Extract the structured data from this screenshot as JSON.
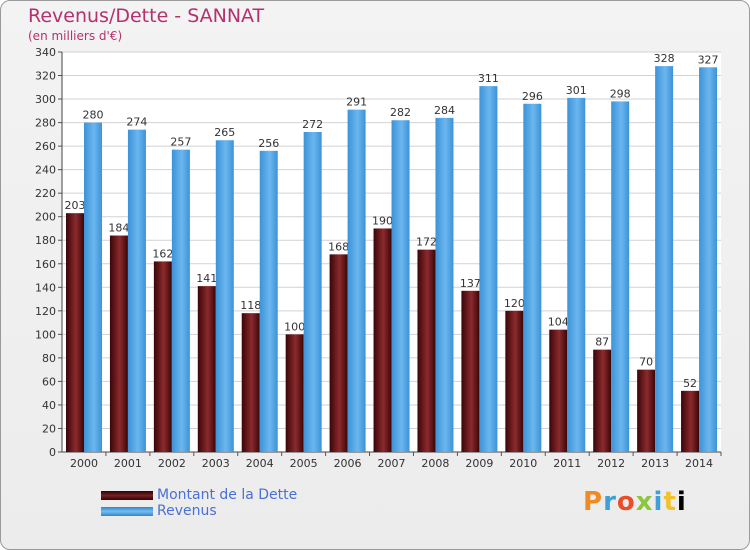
{
  "title": "Revenus/Dette - SANNAT",
  "subtitle": "(en milliers d'€)",
  "legend": {
    "debt_label": "Montant de la Dette",
    "revenue_label": "Revenus"
  },
  "logo_text": "Proxiti",
  "colors": {
    "debt": "#7a1f22",
    "revenue": "#4fa3e4",
    "title": "#b5306e"
  },
  "chart_data": {
    "type": "bar",
    "categories": [
      "2000",
      "2001",
      "2002",
      "2003",
      "2004",
      "2005",
      "2006",
      "2007",
      "2008",
      "2009",
      "2010",
      "2011",
      "2012",
      "2013",
      "2014"
    ],
    "series": [
      {
        "name": "Montant de la Dette",
        "values": [
          203,
          184,
          162,
          141,
          118,
          100,
          168,
          190,
          172,
          137,
          120,
          104,
          87,
          70,
          52
        ]
      },
      {
        "name": "Revenus",
        "values": [
          280,
          274,
          257,
          265,
          256,
          272,
          291,
          282,
          284,
          311,
          296,
          301,
          298,
          328,
          327
        ]
      }
    ],
    "ylim": [
      0,
      340
    ],
    "yticks": [
      0,
      20,
      40,
      60,
      80,
      100,
      120,
      140,
      160,
      180,
      200,
      220,
      240,
      260,
      280,
      300,
      320,
      340
    ],
    "grid": true,
    "legend_position": "bottom-left"
  }
}
